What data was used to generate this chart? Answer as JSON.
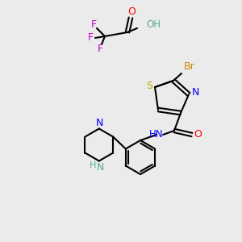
{
  "bg_color": "#ebebeb",
  "atom_colors": {
    "C": "#000000",
    "N": "#0000ff",
    "O": "#ff0000",
    "S": "#bbaa00",
    "F": "#cc00cc",
    "Br": "#cc8800",
    "H": "#5aaa96",
    "OH": "#5aaa96"
  },
  "bond_color": "#000000",
  "figsize": [
    3.0,
    3.0
  ],
  "dpi": 100
}
